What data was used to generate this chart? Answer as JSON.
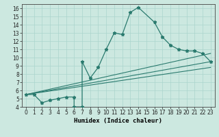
{
  "xlabel": "Humidex (Indice chaleur)",
  "bg_color": "#cce8e0",
  "line_color": "#2a7a6e",
  "xlim": [
    -0.5,
    23.5
  ],
  "ylim": [
    4,
    16.5
  ],
  "xticks": [
    0,
    1,
    2,
    3,
    4,
    5,
    6,
    7,
    8,
    9,
    10,
    11,
    12,
    13,
    14,
    15,
    16,
    17,
    18,
    19,
    20,
    21,
    22,
    23
  ],
  "yticks": [
    4,
    5,
    6,
    7,
    8,
    9,
    10,
    11,
    12,
    13,
    14,
    15,
    16
  ],
  "curve1_x": [
    0,
    1,
    2,
    3,
    4,
    5,
    6,
    6,
    7,
    7,
    8,
    9,
    10,
    11,
    12,
    13,
    14,
    16,
    17,
    18,
    19,
    20,
    21,
    22,
    23
  ],
  "curve1_y": [
    5.5,
    5.5,
    4.5,
    4.8,
    5.0,
    5.2,
    5.2,
    4.0,
    4.0,
    9.5,
    7.5,
    8.8,
    11.0,
    13.0,
    12.8,
    15.5,
    16.1,
    14.3,
    12.5,
    11.5,
    11.0,
    10.8,
    10.8,
    10.5,
    9.5
  ],
  "line2_x": [
    0,
    23
  ],
  "line2_y": [
    5.5,
    10.5
  ],
  "line3_x": [
    0,
    23
  ],
  "line3_y": [
    5.5,
    9.5
  ],
  "line4_x": [
    0,
    23
  ],
  "line4_y": [
    5.5,
    8.8
  ],
  "grid_color": "#aad4cc",
  "xlabel_fontsize": 6.5,
  "tick_fontsize": 5.5
}
